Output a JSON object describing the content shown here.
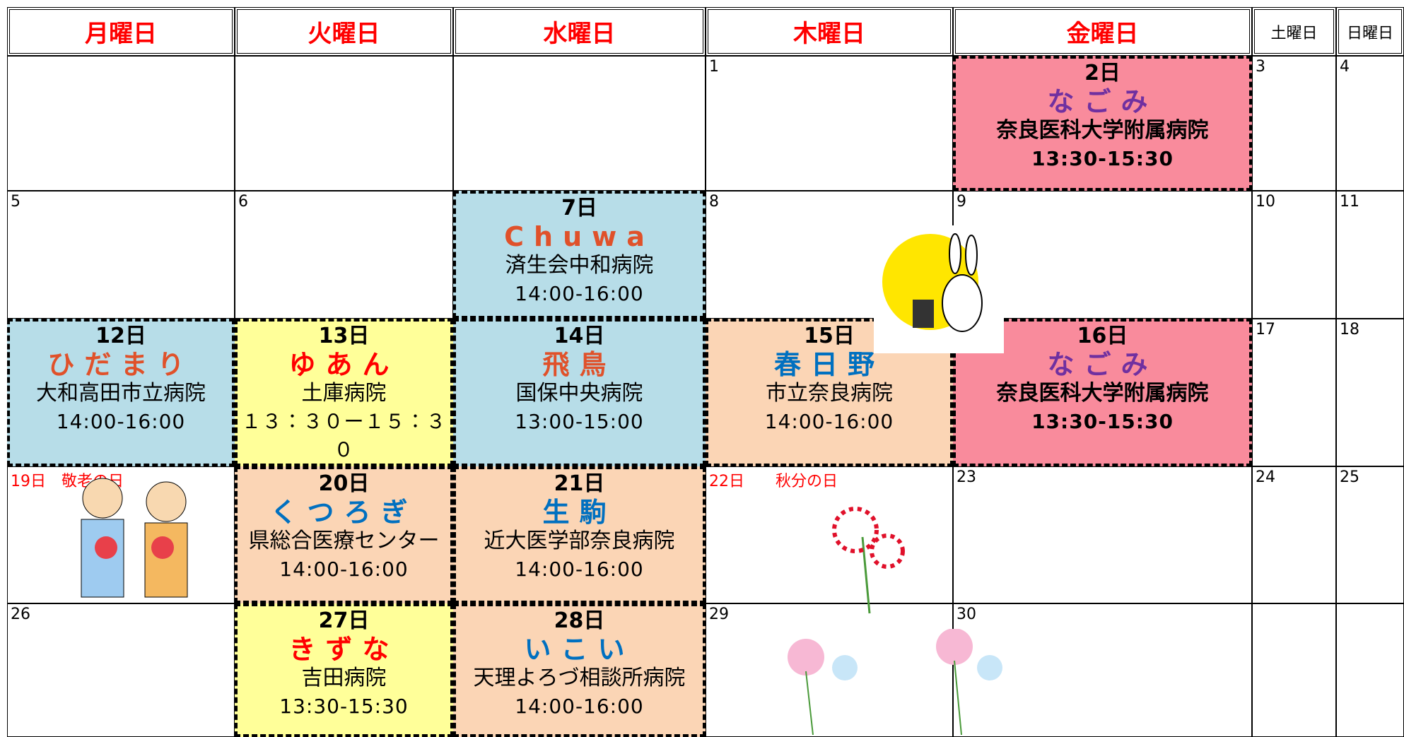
{
  "header": {
    "days": [
      "月曜日",
      "火曜日",
      "水曜日",
      "木曜日",
      "金曜日",
      "土曜日",
      "日曜日"
    ]
  },
  "weeks": [
    [
      {},
      {},
      {},
      {
        "date": "1"
      },
      {
        "date": "2日",
        "lines": [
          "なごみ",
          "奈良医科大学附属病院",
          "13:30-15:30"
        ],
        "bg": "#f98b9c",
        "name_color": "#7030a0",
        "bold_hospital": true
      },
      {
        "date": "3"
      },
      {
        "date": "4"
      }
    ],
    [
      {
        "date": "5"
      },
      {
        "date": "6"
      },
      {
        "date": "7日",
        "lines": [
          "Chuwa",
          "済生会中和病院",
          "14:00-16:00"
        ],
        "bg": "#b7dde8",
        "name_color": "#e0512a"
      },
      {
        "date": "8"
      },
      {
        "date": "9"
      },
      {
        "date": "10"
      },
      {
        "date": "11"
      }
    ],
    [
      {
        "date": "12日",
        "lines": [
          "ひだまり",
          "大和高田市立病院",
          "14:00-16:00"
        ],
        "bg": "#b7dde8",
        "name_color": "#e0512a"
      },
      {
        "date": "13日",
        "lines": [
          "ゆあん",
          "土庫病院",
          "１３：３０ー１５：３０"
        ],
        "bg": "#ffff99",
        "name_color": "#ff0000"
      },
      {
        "date": "14日",
        "lines": [
          "飛鳥",
          "国保中央病院",
          "13:00-15:00"
        ],
        "bg": "#b7dde8",
        "name_color": "#e0512a"
      },
      {
        "date": "15日",
        "lines": [
          "春日野",
          "市立奈良病院",
          "14:00-16:00"
        ],
        "bg": "#fbd5b5",
        "name_color": "#0070c0"
      },
      {
        "date": "16日",
        "lines": [
          "なごみ",
          "奈良医科大学附属病院",
          "13:30-15:30"
        ],
        "bg": "#f98b9c",
        "name_color": "#7030a0",
        "bold_hospital": true
      },
      {
        "date": "17"
      },
      {
        "date": "18"
      }
    ],
    [
      {
        "date": "19日　敬老の日",
        "date_color": "#ff0000"
      },
      {
        "date": "20日",
        "lines": [
          "くつろぎ",
          "県総合医療センター",
          "14:00-16:00"
        ],
        "bg": "#fbd5b5",
        "name_color": "#0070c0"
      },
      {
        "date": "21日",
        "lines": [
          "生駒",
          "近大医学部奈良病院",
          "14:00-16:00"
        ],
        "bg": "#fbd5b5",
        "name_color": "#0070c0"
      },
      {
        "date": "22日　　秋分の日",
        "date_color": "#ff0000"
      },
      {
        "date": "23"
      },
      {
        "date": "24"
      },
      {
        "date": "25"
      }
    ],
    [
      {
        "date": "26"
      },
      {
        "date": "27日",
        "lines": [
          "きずな",
          "吉田病院",
          "13:30-15:30"
        ],
        "bg": "#ffff99",
        "name_color": "#ff0000"
      },
      {
        "date": "28日",
        "lines": [
          "いこい",
          "天理よろづ相談所病院",
          "14:00-16:00"
        ],
        "bg": "#fbd5b5",
        "name_color": "#0070c0"
      },
      {
        "date": "29"
      },
      {
        "date": "30"
      },
      {},
      {}
    ]
  ]
}
